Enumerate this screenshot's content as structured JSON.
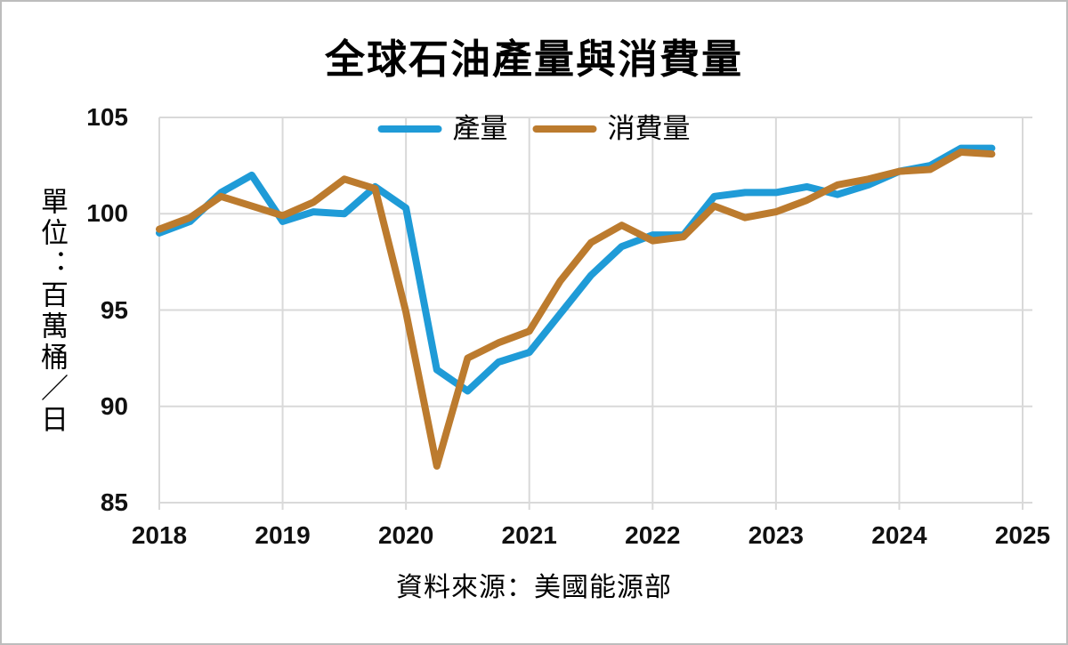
{
  "window": {
    "background": "#ffffff",
    "border_color": "#bdbdbd"
  },
  "title": "全球石油產量與消費量",
  "source": "資料來源：美國能源部",
  "colors": {
    "production_line": "#1F9BD7",
    "consumption_line": "#BC7B2E",
    "gridline": "#d9d9d9",
    "text": "#000000"
  },
  "legend": {
    "items": [
      {
        "label": "產量",
        "color": "#1F9BD7"
      },
      {
        "label": "消費量",
        "color": "#BC7B2E"
      }
    ]
  },
  "y_axis": {
    "unit_label": "單位：百萬桶／日",
    "ticks": [
      105,
      100,
      95,
      90,
      85
    ]
  },
  "x_axis": {
    "ticks": [
      2018,
      2019,
      2020,
      2021,
      2022,
      2023,
      2024,
      2025
    ]
  },
  "chart_data": {
    "type": "line",
    "title": "全球石油產量與消費量",
    "ylabel": "單位：百萬桶／日",
    "source": "資料來源：美國能源部",
    "x_start": 2018,
    "x_step": 0.25,
    "x_unit": "quarter",
    "xlim": [
      2018,
      2025
    ],
    "ylim": [
      85,
      105
    ],
    "y_ticks": [
      85,
      90,
      95,
      100,
      105
    ],
    "x_ticks": [
      2018,
      2019,
      2020,
      2021,
      2022,
      2023,
      2024,
      2025
    ],
    "grid": true,
    "legend_position": "top-center",
    "series": [
      {
        "name": "產量",
        "color": "#1F9BD7",
        "values": [
          99.0,
          99.6,
          101.1,
          102.0,
          99.6,
          100.1,
          100.0,
          101.4,
          100.3,
          91.9,
          90.8,
          92.3,
          92.8,
          94.8,
          96.8,
          98.3,
          98.9,
          98.9,
          100.9,
          101.1,
          101.1,
          101.4,
          101.0,
          101.5,
          102.2,
          102.5,
          103.4,
          103.4
        ]
      },
      {
        "name": "消費量",
        "color": "#BC7B2E",
        "values": [
          99.2,
          99.8,
          100.9,
          100.4,
          99.9,
          100.6,
          101.8,
          101.3,
          94.9,
          86.9,
          92.5,
          93.3,
          93.9,
          96.5,
          98.5,
          99.4,
          98.6,
          98.8,
          100.4,
          99.8,
          100.1,
          100.7,
          101.5,
          101.8,
          102.2,
          102.3,
          103.2,
          103.1
        ]
      }
    ]
  }
}
